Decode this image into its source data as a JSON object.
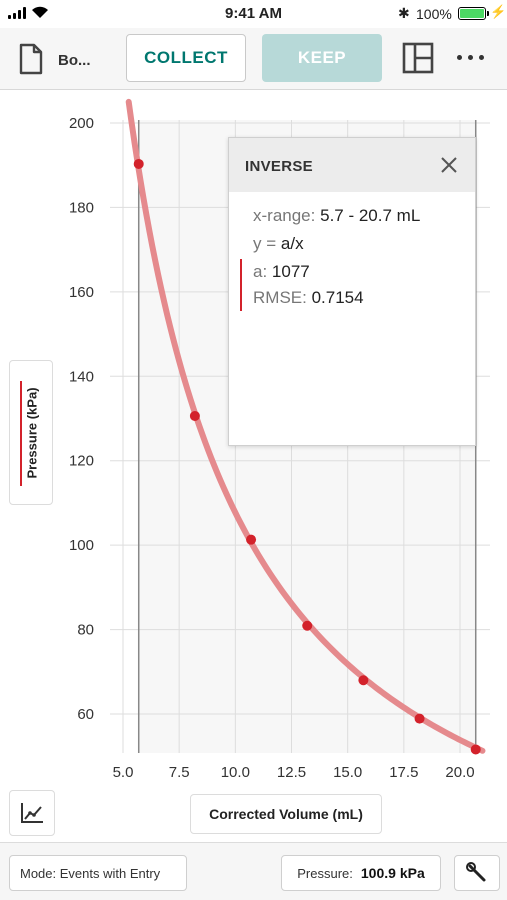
{
  "status_bar": {
    "time": "9:41 AM",
    "battery_pct": "100%",
    "icons": [
      "signal-icon",
      "wifi-icon",
      "bluetooth-icon",
      "battery-icon",
      "charging-icon"
    ]
  },
  "toolbar": {
    "doc_name": "Bo...",
    "collect_label": "COLLECT",
    "keep_label": "KEEP",
    "accent_color": "#00776f",
    "keep_color": "#b7d9d8"
  },
  "chart_data": {
    "type": "scatter",
    "xlabel": "Corrected Volume (mL)",
    "ylabel": "Pressure (kPa)",
    "xlim": [
      4.5,
      21
    ],
    "ylim": [
      52,
      200
    ],
    "xticks": [
      "5.0",
      "7.5",
      "10.0",
      "12.5",
      "15.0",
      "17.5",
      "20.0"
    ],
    "yticks": [
      "60",
      "80",
      "100",
      "120",
      "140",
      "160",
      "180",
      "200"
    ],
    "points": {
      "x": [
        5.7,
        8.2,
        10.7,
        13.2,
        15.7,
        18.2,
        20.7
      ],
      "y": [
        190.3,
        130.6,
        101.3,
        80.9,
        68.0,
        58.9,
        51.6
      ]
    },
    "fit": {
      "model": "inverse",
      "a": 1077
    },
    "selection_range": [
      5.7,
      20.7
    ],
    "point_color": "#d3222b",
    "curve_color": "#e58a8d",
    "grid": true
  },
  "inverse_panel": {
    "title": "INVERSE",
    "xrange_key": "x-range:",
    "xrange_value": "5.7 - 20.7 mL",
    "eq_key": "y =",
    "eq_value": "a/x",
    "a_key": "a:",
    "a_value": "1077",
    "rmse_key": "RMSE:",
    "rmse_value": "0.7154"
  },
  "bottom_bar": {
    "mode_label": "Mode: Events with Entry",
    "pressure_key": "Pressure:",
    "pressure_value": "100.9 kPa"
  }
}
